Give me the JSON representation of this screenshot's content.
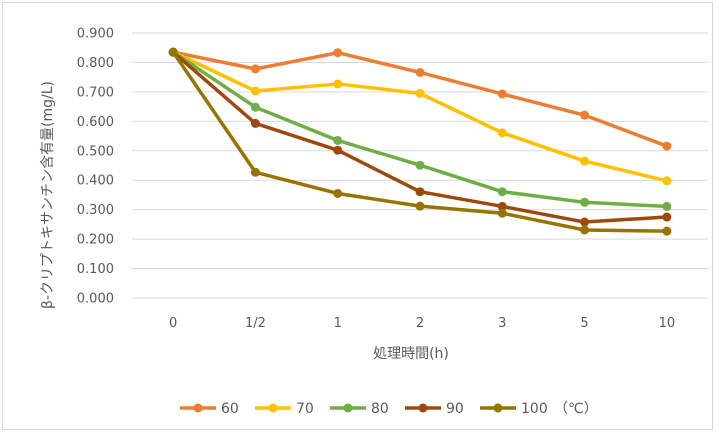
{
  "chart_data": {
    "type": "line",
    "categories": [
      "0",
      "1/2",
      "1",
      "2",
      "3",
      "5",
      "10"
    ],
    "series": [
      {
        "name": "60",
        "color": "#ED7D31",
        "values": [
          0.835,
          0.778,
          0.833,
          0.766,
          0.693,
          0.621,
          0.516
        ]
      },
      {
        "name": "70",
        "color": "#FFC000",
        "values": [
          0.835,
          0.703,
          0.727,
          0.695,
          0.561,
          0.465,
          0.398
        ]
      },
      {
        "name": "80",
        "color": "#70AD47",
        "values": [
          0.835,
          0.648,
          0.535,
          0.451,
          0.361,
          0.325,
          0.311
        ]
      },
      {
        "name": "90",
        "color": "#9E480E",
        "values": [
          0.835,
          0.593,
          0.502,
          0.361,
          0.311,
          0.258,
          0.275
        ]
      },
      {
        "name": "100",
        "color": "#997300",
        "values": [
          0.835,
          0.427,
          0.355,
          0.312,
          0.288,
          0.231,
          0.227
        ]
      }
    ],
    "xlabel": "処理時間(h)",
    "ylabel": "β-クリプトキサンチン含有量(mg/L)",
    "ylim": [
      0,
      0.9
    ],
    "yticks": [
      "0.000",
      "0.100",
      "0.200",
      "0.300",
      "0.400",
      "0.500",
      "0.600",
      "0.700",
      "0.800",
      "0.900"
    ],
    "legend_unit": "（℃）",
    "legend_position": "bottom",
    "grid": true
  }
}
